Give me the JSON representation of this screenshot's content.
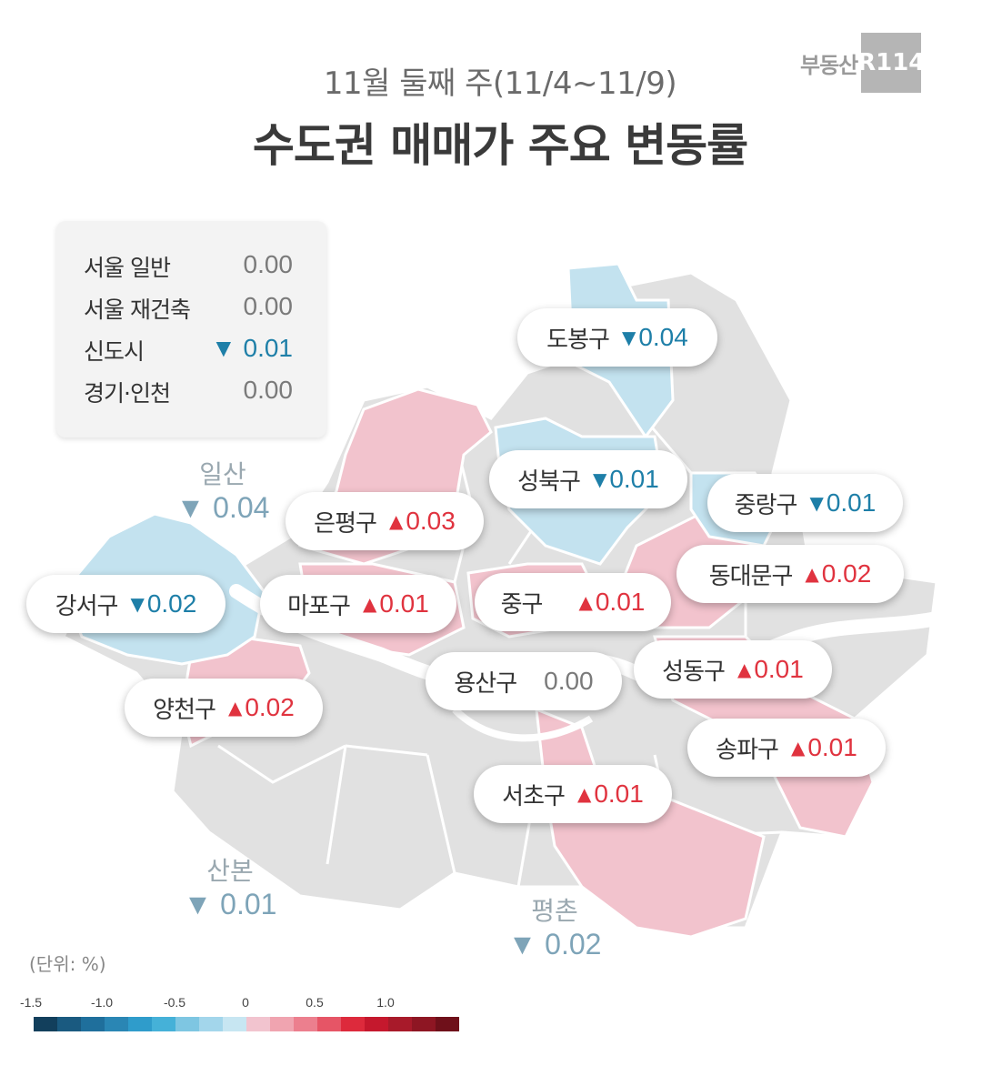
{
  "header": {
    "subtitle": "11월 둘째 주(11/4~11/9)",
    "title": "수도권 매매가 주요 변동률",
    "logo_text": "부동산",
    "logo_mark": "R114"
  },
  "summary": [
    {
      "name": "서울 일반",
      "value": "0.00",
      "trend": "flat"
    },
    {
      "name": "서울 재건축",
      "value": "0.00",
      "trend": "flat"
    },
    {
      "name": "신도시",
      "value": "▼ 0.01",
      "trend": "down"
    },
    {
      "name": "경기·인천",
      "value": "0.00",
      "trend": "flat"
    }
  ],
  "districts": [
    {
      "name": "도봉구",
      "arrow": "▼",
      "value": "0.04",
      "trend": "down"
    },
    {
      "name": "성북구",
      "arrow": "▼",
      "value": "0.01",
      "trend": "down"
    },
    {
      "name": "중랑구",
      "arrow": "▼",
      "value": "0.01",
      "trend": "down"
    },
    {
      "name": "은평구",
      "arrow": "▲",
      "value": "0.03",
      "trend": "up"
    },
    {
      "name": "동대문구",
      "arrow": "▲",
      "value": "0.02",
      "trend": "up"
    },
    {
      "name": "강서구",
      "arrow": "▼",
      "value": "0.02",
      "trend": "down"
    },
    {
      "name": "마포구",
      "arrow": "▲",
      "value": "0.01",
      "trend": "up"
    },
    {
      "name": "중구",
      "arrow": "▲",
      "value": "0.01",
      "trend": "up"
    },
    {
      "name": "성동구",
      "arrow": "▲",
      "value": "0.01",
      "trend": "up"
    },
    {
      "name": "용산구",
      "arrow": "",
      "value": "0.00",
      "trend": "flat"
    },
    {
      "name": "양천구",
      "arrow": "▲",
      "value": "0.02",
      "trend": "up"
    },
    {
      "name": "송파구",
      "arrow": "▲",
      "value": "0.01",
      "trend": "up"
    },
    {
      "name": "서초구",
      "arrow": "▲",
      "value": "0.01",
      "trend": "up"
    }
  ],
  "outer_cities": [
    {
      "name": "일산",
      "value": "▼ 0.04"
    },
    {
      "name": "산본",
      "value": "▼ 0.01"
    },
    {
      "name": "평촌",
      "value": "▼ 0.02"
    }
  ],
  "legend": {
    "unit": "(단위:  %)",
    "ticks": [
      "-1.5",
      "-1.0",
      "-0.5",
      "0",
      "0.5",
      "1.0"
    ],
    "colors": [
      "#123f5c",
      "#1a5a80",
      "#1f6f9c",
      "#2a86b4",
      "#2f9ccb",
      "#45b1d8",
      "#7ec6e2",
      "#a3d6eb",
      "#c7e6f2",
      "#f2c4cf",
      "#f0a4b0",
      "#ec7f8e",
      "#e65566",
      "#dd2a3c",
      "#c5182d",
      "#a81a2a",
      "#8e1623",
      "#6f101a"
    ]
  },
  "map_colors": {
    "neutral": "#e1e1e1",
    "rise": "#f2c3cd",
    "fall": "#c3e2ef",
    "river": "#ffffff"
  }
}
